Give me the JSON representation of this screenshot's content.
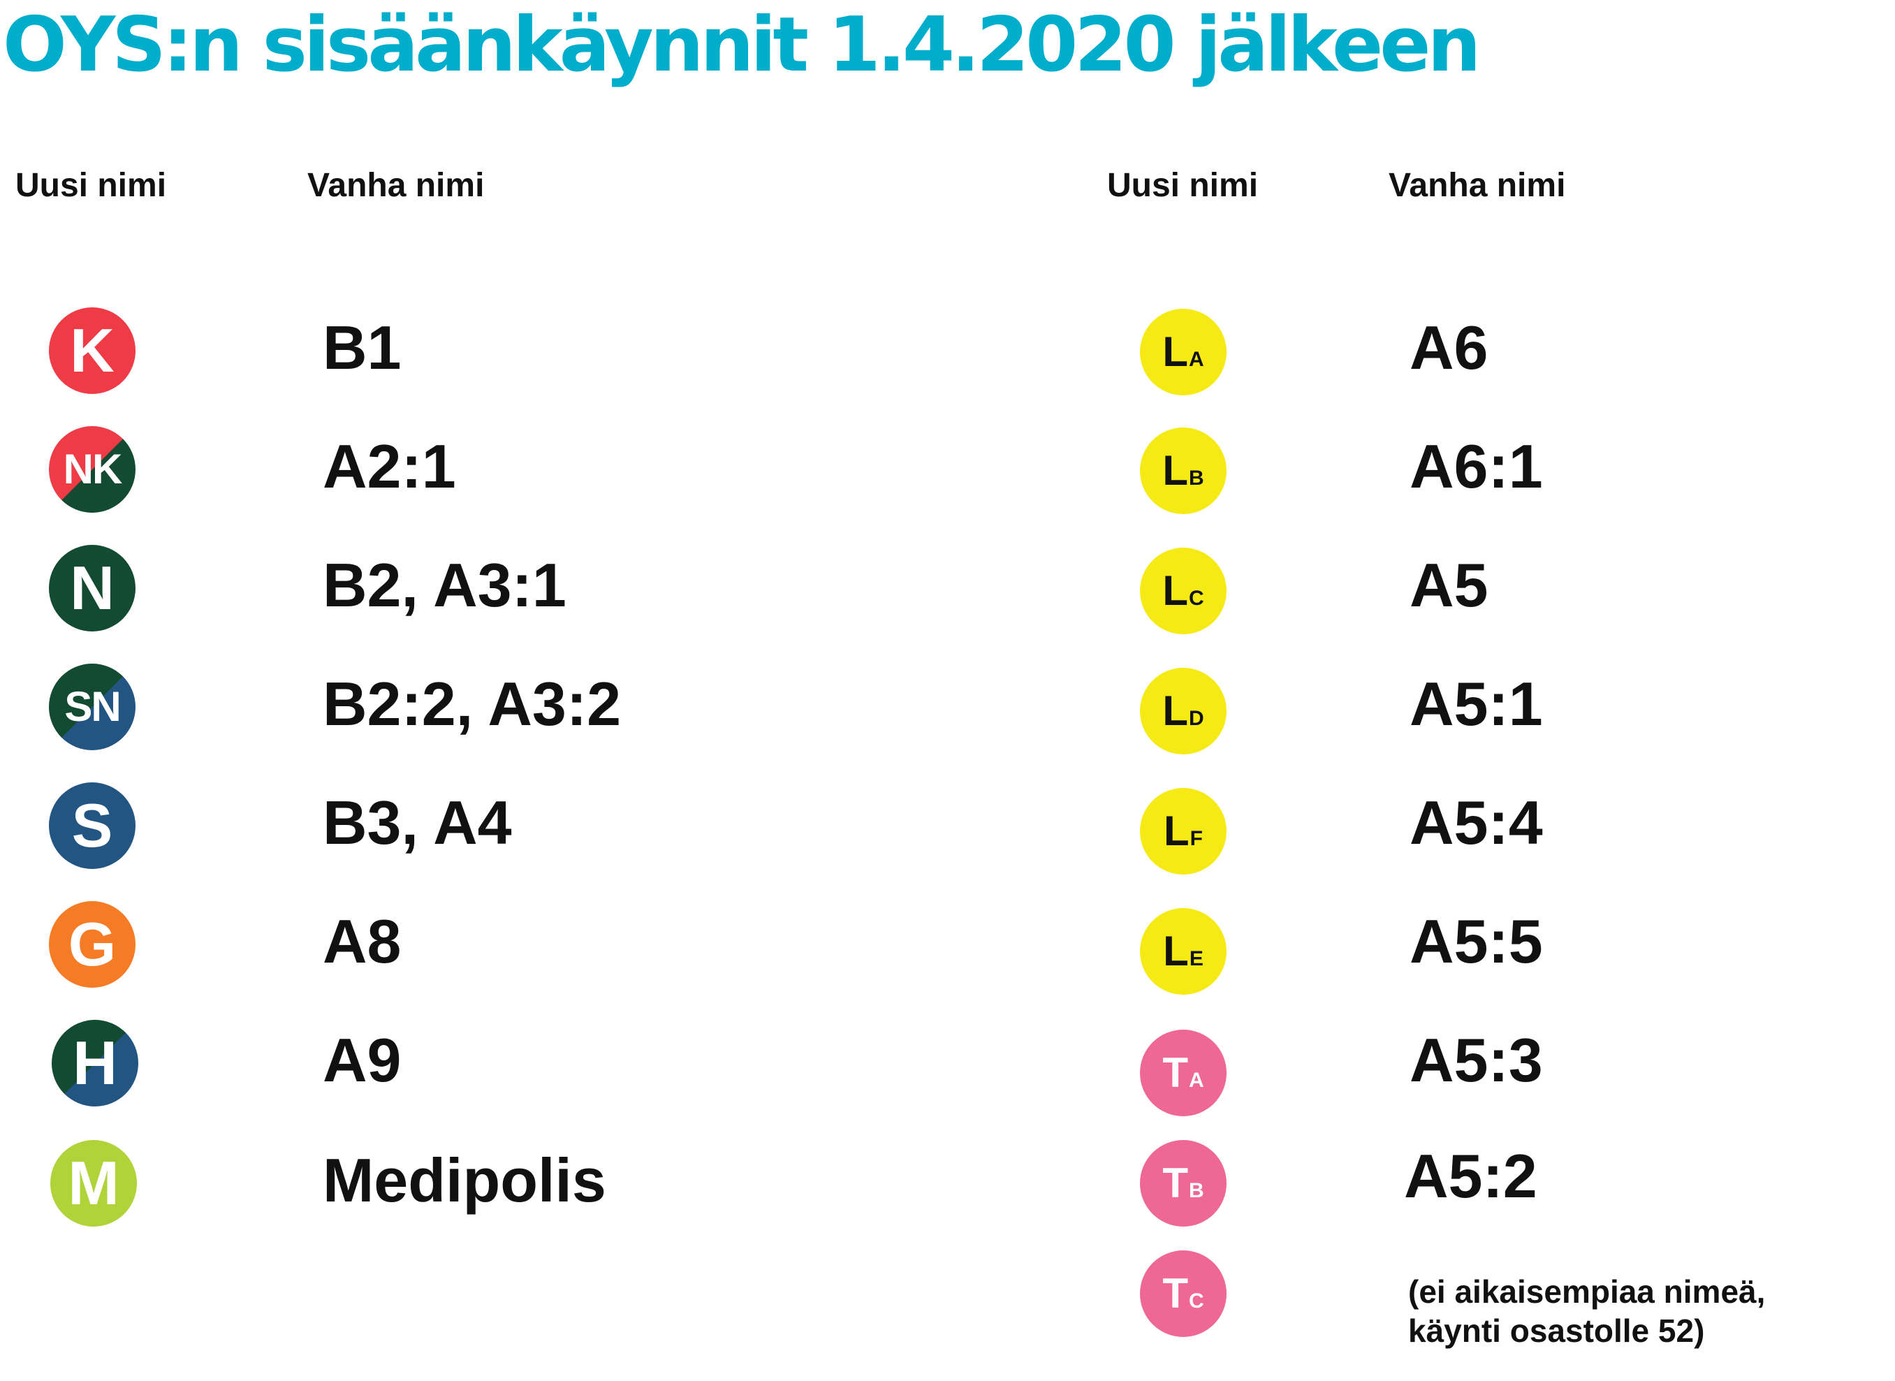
{
  "title": "OYS:n sisäänkäynnit 1.4.2020 jälkeen",
  "colors": {
    "title": "#00aecc",
    "red": "#ee3b45",
    "dark_green": "#134a32",
    "blue": "#235583",
    "orange": "#f57b24",
    "lime": "#b0d33a",
    "yellow": "#f5ea14",
    "pink": "#ef6794"
  },
  "left": {
    "header_new": "Uusi nimi",
    "header_old": "Vanha nimi",
    "rows": [
      {
        "badge": "K",
        "old": "B1"
      },
      {
        "badge": "NK",
        "old": "A2:1"
      },
      {
        "badge": "N",
        "old": "B2, A3:1"
      },
      {
        "badge": "SN",
        "old": "B2:2, A3:2"
      },
      {
        "badge": "S",
        "old": "B3, A4"
      },
      {
        "badge": "G",
        "old": "A8"
      },
      {
        "badge": "H",
        "old": "A9"
      },
      {
        "badge": "M",
        "old": "Medipolis"
      }
    ]
  },
  "right": {
    "header_new": "Uusi nimi",
    "header_old": "Vanha nimi",
    "rows": [
      {
        "badge_main": "L",
        "badge_sub": "A",
        "old": "A6"
      },
      {
        "badge_main": "L",
        "badge_sub": "B",
        "old": "A6:1"
      },
      {
        "badge_main": "L",
        "badge_sub": "C",
        "old": "A5"
      },
      {
        "badge_main": "L",
        "badge_sub": "D",
        "old": "A5:1"
      },
      {
        "badge_main": "L",
        "badge_sub": "F",
        "old": "A5:4"
      },
      {
        "badge_main": "L",
        "badge_sub": "E",
        "old": "A5:5"
      },
      {
        "badge_main": "T",
        "badge_sub": "A",
        "old": "A5:3"
      },
      {
        "badge_main": "T",
        "badge_sub": "B",
        "old": "A5:2"
      },
      {
        "badge_main": "T",
        "badge_sub": "C",
        "note_line1": "(ei aikaisempiaa nimeä,",
        "note_line2": "käynti osastolle 52)"
      }
    ]
  }
}
